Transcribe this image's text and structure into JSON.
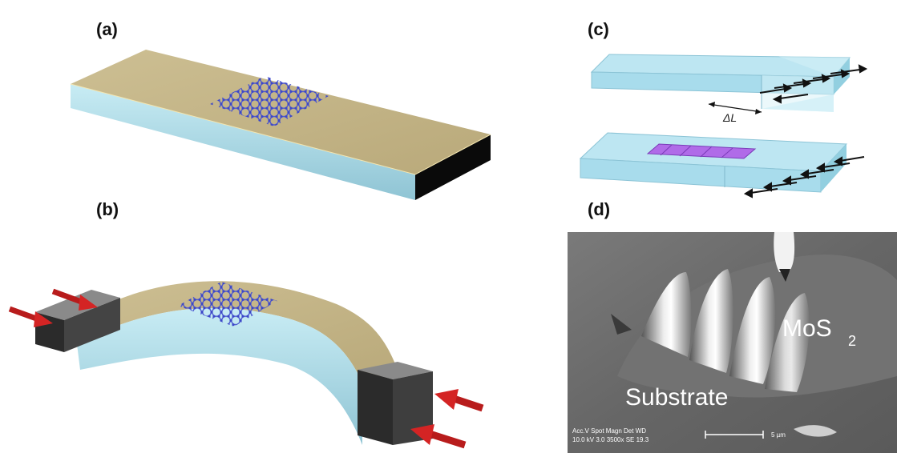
{
  "panels": {
    "a": {
      "label": "(a)"
    },
    "b": {
      "label": "(b)"
    },
    "c": {
      "label": "(c)",
      "delta_label": "ΔL"
    },
    "d": {
      "label": "(d)",
      "material_label": "MoS",
      "material_subscript": "2",
      "substrate_label": "Substrate",
      "info_header": "Acc.V   Spot Magn    Det  WD",
      "info_values": "10.0 kV 3.0   3500x    SE   19.3",
      "scale_label": "5 µm"
    }
  },
  "colors": {
    "substrate_top": "#c8b98a",
    "substrate_side": "#a9d6e2",
    "lattice": "#5a62d8",
    "clamp": "#3a3a3a",
    "arrow": "#c0201f",
    "film_purple": "#b06be8",
    "sem_bg": "#6a6a6a"
  }
}
